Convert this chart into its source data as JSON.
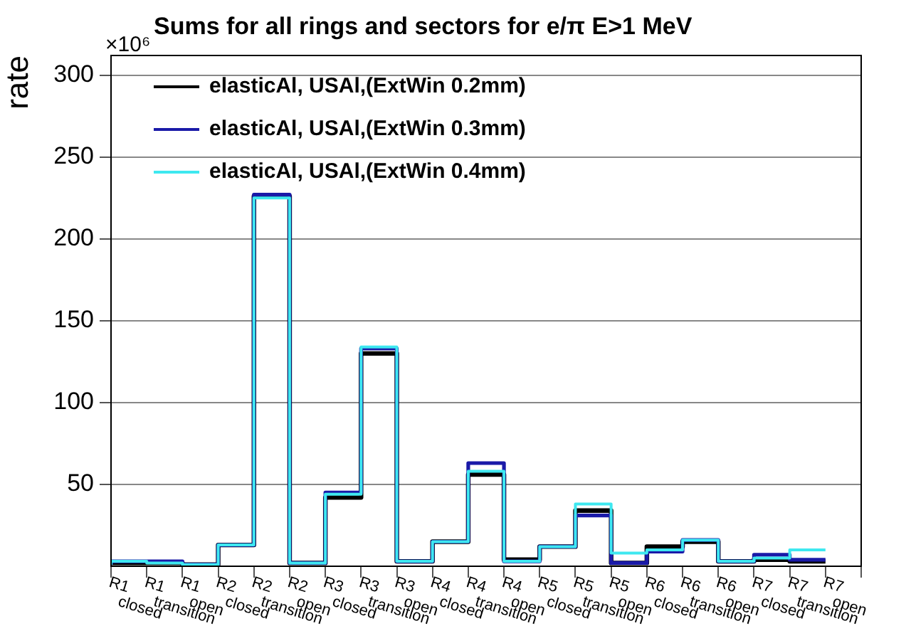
{
  "chart_data": {
    "type": "step",
    "title": "Sums for all rings and sectors for e/π E>1 MeV",
    "ylabel": "rate",
    "annotations": [
      "×10⁶"
    ],
    "categories": [
      "R1 closed",
      "R1 transition",
      "R1 open",
      "R2 closed",
      "R2 transition",
      "R2 open",
      "R3 closed",
      "R3 transition",
      "R3 open",
      "R4 closed",
      "R4 transition",
      "R4 open",
      "R5 closed",
      "R5 transition",
      "R5 open",
      "R6 closed",
      "R6 transition",
      "R6 open",
      "R7 closed",
      "R7 transition",
      "R7 open"
    ],
    "series": [
      {
        "name": "elasticAl, USAl,(ExtWin 0.2mm)",
        "color": "#000000",
        "values": [
          1,
          2,
          2,
          1,
          13,
          226,
          2,
          42,
          130,
          3,
          15,
          56,
          4,
          12,
          34,
          2,
          12,
          15,
          3,
          4,
          3
        ]
      },
      {
        "name": "elasticAl, USAl,(ExtWin 0.3mm)",
        "color": "#1a1aa8",
        "values": [
          1,
          3,
          3,
          1,
          13,
          227,
          2,
          45,
          133,
          3,
          15,
          63,
          3,
          12,
          31,
          2,
          9,
          16,
          3,
          7,
          4
        ]
      },
      {
        "name": "elasticAl, USAl,(ExtWin 0.4mm)",
        "color": "#3ee8f0",
        "values": [
          1,
          3,
          2,
          1,
          13,
          225,
          2,
          44,
          134,
          3,
          15,
          58,
          3,
          12,
          38,
          8,
          10,
          16,
          3,
          5,
          10
        ]
      }
    ],
    "ylim": [
      0,
      312
    ],
    "yticks": [
      50,
      100,
      150,
      200,
      250,
      300
    ],
    "grid": "y",
    "legend": "top left"
  }
}
